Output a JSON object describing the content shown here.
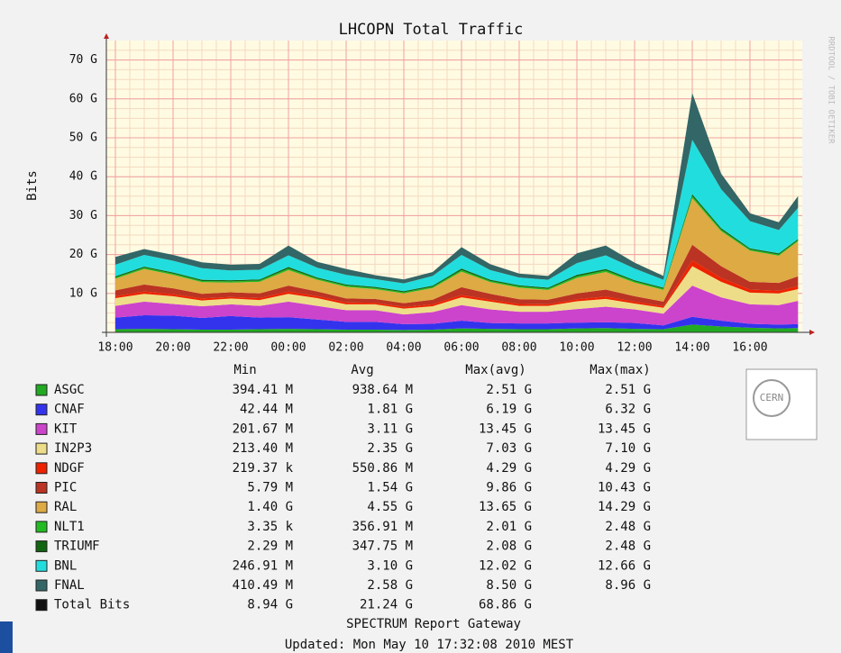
{
  "chart_data": {
    "type": "stacked_area",
    "title": "LHCOPN Total Traffic",
    "y_label": "Bits",
    "watermark": "RRDTOOL / TOBI OETIKER",
    "x": [
      "18:00",
      "19:00",
      "20:00",
      "21:00",
      "22:00",
      "23:00",
      "00:00",
      "01:00",
      "02:00",
      "03:00",
      "04:00",
      "05:00",
      "06:00",
      "07:00",
      "08:00",
      "09:00",
      "10:00",
      "11:00",
      "12:00",
      "13:00",
      "14:00",
      "15:00",
      "16:00",
      "17:00",
      "17:40"
    ],
    "xticks": [
      "18:00",
      "20:00",
      "22:00",
      "00:00",
      "02:00",
      "04:00",
      "06:00",
      "08:00",
      "10:00",
      "12:00",
      "14:00",
      "16:00"
    ],
    "ylim": [
      0,
      75
    ],
    "yticks": [
      {
        "value": 10,
        "label": "10 G"
      },
      {
        "value": 20,
        "label": "20 G"
      },
      {
        "value": 30,
        "label": "30 G"
      },
      {
        "value": 40,
        "label": "40 G"
      },
      {
        "value": 50,
        "label": "50 G"
      },
      {
        "value": 60,
        "label": "60 G"
      },
      {
        "value": 70,
        "label": "70 G"
      }
    ],
    "grid": true,
    "stats_columns": [
      "Min",
      "Avg",
      "Max(avg)",
      "Max(max)"
    ],
    "series": [
      {
        "name": "ASGC",
        "color": "#22aa22",
        "stats": [
          "394.41 M",
          "938.64 M",
          "2.51 G",
          "2.51 G"
        ],
        "values": [
          0.8,
          0.9,
          0.8,
          0.7,
          0.7,
          0.8,
          0.9,
          0.8,
          0.7,
          0.7,
          0.6,
          0.7,
          1.0,
          0.9,
          0.8,
          0.8,
          1.0,
          1.1,
          0.9,
          0.8,
          2.0,
          1.5,
          1.2,
          1.0,
          1.1
        ]
      },
      {
        "name": "CNAF",
        "color": "#3333ee",
        "stats": [
          "42.44 M",
          "1.81 G",
          "6.19 G",
          "6.32 G"
        ],
        "values": [
          3,
          3.5,
          3.5,
          3,
          3.5,
          3,
          3,
          2.5,
          2,
          2,
          1.5,
          1.5,
          2,
          1.5,
          1.5,
          1.5,
          1.5,
          1.5,
          1.5,
          1,
          2,
          1.5,
          1,
          1,
          1
        ]
      },
      {
        "name": "KIT",
        "color": "#cc44cc",
        "stats": [
          "201.67 M",
          "3.11 G",
          "13.45 G",
          "13.45 G"
        ],
        "values": [
          3,
          3.5,
          3,
          3,
          3,
          3,
          4,
          3.5,
          3,
          3,
          2.5,
          3,
          4,
          3.5,
          3,
          3,
          3.5,
          4,
          3.5,
          3,
          8,
          6,
          5,
          5,
          6
        ]
      },
      {
        "name": "IN2P3",
        "color": "#eedd88",
        "stats": [
          "213.40 M",
          "2.35 G",
          "7.03 G",
          "7.10 G"
        ],
        "values": [
          2,
          2,
          2,
          1.5,
          1.5,
          1.5,
          2,
          2,
          1.5,
          1.5,
          1.5,
          1.5,
          2,
          2,
          1.5,
          1.5,
          2,
          2,
          1.5,
          1.5,
          5,
          4,
          3,
          3,
          3
        ]
      },
      {
        "name": "NDGF",
        "color": "#ee2200",
        "stats": [
          "219.37 k",
          "550.86 M",
          "4.29 G",
          "4.29 G"
        ],
        "values": [
          0.5,
          0.6,
          0.5,
          0.5,
          0.4,
          0.5,
          0.6,
          0.5,
          0.5,
          0.4,
          0.4,
          0.5,
          0.6,
          0.5,
          0.5,
          0.4,
          0.5,
          0.6,
          0.5,
          0.4,
          1.5,
          1,
          0.8,
          0.7,
          0.8
        ]
      },
      {
        "name": "PIC",
        "color": "#bb3322",
        "stats": [
          "5.79 M",
          "1.54 G",
          "9.86 G",
          "10.43 G"
        ],
        "values": [
          1.5,
          1.8,
          1.5,
          1.2,
          1.2,
          1.2,
          1.5,
          1.2,
          1,
          1,
          1,
          1.2,
          2,
          1.5,
          1.2,
          1.2,
          1.5,
          1.8,
          1.4,
          1.2,
          4,
          3,
          2,
          2,
          2.5
        ]
      },
      {
        "name": "RAL",
        "color": "#ddaa44",
        "stats": [
          "1.40 G",
          "4.55 G",
          "13.65 G",
          "14.29 G"
        ],
        "values": [
          3,
          4,
          3.5,
          3,
          2.5,
          3,
          4,
          3,
          3,
          2.5,
          2.5,
          3,
          4,
          3,
          3,
          2.5,
          4,
          4.5,
          3.5,
          3,
          12,
          9,
          8,
          7,
          9
        ]
      },
      {
        "name": "NLT1",
        "color": "#22bb22",
        "stats": [
          "3.35 k",
          "356.91 M",
          "2.01 G",
          "2.48 G"
        ],
        "values": [
          0.3,
          0.3,
          0.3,
          0.3,
          0.3,
          0.3,
          0.4,
          0.3,
          0.3,
          0.3,
          0.3,
          0.3,
          0.4,
          0.3,
          0.3,
          0.3,
          0.4,
          0.4,
          0.3,
          0.3,
          0.5,
          0.4,
          0.3,
          0.3,
          0.3
        ]
      },
      {
        "name": "TRIUMF",
        "color": "#116611",
        "stats": [
          "2.29 M",
          "347.75 M",
          "2.08 G",
          "2.48 G"
        ],
        "values": [
          0.3,
          0.3,
          0.3,
          0.3,
          0.3,
          0.3,
          0.4,
          0.3,
          0.3,
          0.3,
          0.3,
          0.3,
          0.4,
          0.3,
          0.3,
          0.3,
          0.4,
          0.4,
          0.3,
          0.3,
          0.5,
          0.4,
          0.3,
          0.3,
          0.3
        ]
      },
      {
        "name": "BNL",
        "color": "#22dddd",
        "stats": [
          "246.91 M",
          "3.10 G",
          "12.02 G",
          "12.66 G"
        ],
        "values": [
          3,
          3,
          3,
          3,
          2.5,
          2.5,
          3,
          2.5,
          2.5,
          2,
          2,
          2.5,
          3.5,
          2.5,
          2,
          2,
          3,
          3.5,
          3,
          2,
          14,
          10,
          7,
          6,
          8
        ]
      },
      {
        "name": "FNAL",
        "color": "#336666",
        "stats": [
          "410.49 M",
          "2.58 G",
          "8.50 G",
          "8.96 G"
        ],
        "values": [
          2,
          1.5,
          1.5,
          1.5,
          1.5,
          1.5,
          2.5,
          1.5,
          1.5,
          1,
          1,
          1,
          2,
          1.5,
          1,
          1,
          2.5,
          2.5,
          1.5,
          1,
          12,
          4,
          2,
          2,
          3
        ]
      }
    ],
    "total": {
      "name": "Total Bits",
      "color": "#111111",
      "stats": [
        "8.94 G",
        "21.24 G",
        "68.86 G"
      ]
    },
    "logo": "CERN",
    "footer": "SPECTRUM Report Gateway",
    "updated": "Updated: Mon May 10 17:32:08 2010 MEST"
  }
}
